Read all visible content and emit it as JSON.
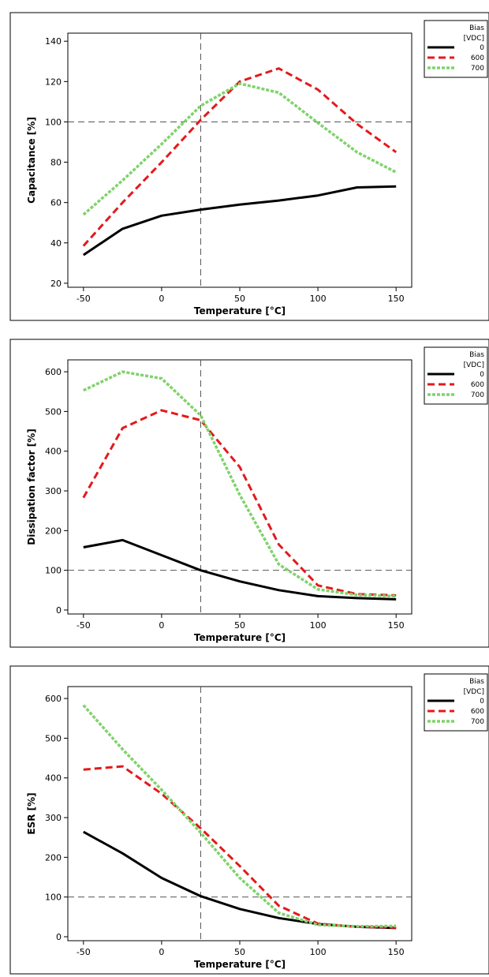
{
  "chart_data": [
    {
      "type": "line",
      "xlabel": "Temperature [°C]",
      "ylabel": "Capacitance [%]",
      "x": [
        -50,
        -25,
        0,
        25,
        50,
        75,
        100,
        125,
        150
      ],
      "xticks": [
        -50,
        0,
        50,
        100,
        150
      ],
      "yticks": [
        20,
        40,
        60,
        80,
        100,
        120,
        140
      ],
      "xlim": [
        -60,
        160
      ],
      "ylim": [
        18,
        144
      ],
      "ref_x": 25,
      "ref_y": 100,
      "legend": {
        "title_line1": "Bias",
        "title_line2": "[VDC]",
        "placement": "right"
      },
      "series": [
        {
          "name": "0",
          "color": "#000000",
          "style": "solid",
          "values": [
            34,
            47,
            53.5,
            56.5,
            59,
            61,
            63.5,
            67.5,
            68
          ]
        },
        {
          "name": "600",
          "color": "#e31a1c",
          "style": "dashed",
          "values": [
            38.5,
            60,
            80,
            101,
            120,
            126.5,
            116,
            99,
            85
          ]
        },
        {
          "name": "700",
          "color": "#7fd36b",
          "style": "dotted",
          "values": [
            54,
            71,
            89,
            108,
            119,
            114.5,
            99.5,
            85,
            75
          ]
        }
      ]
    },
    {
      "type": "line",
      "xlabel": "Temperature [°C]",
      "ylabel": "Dissipation factor [%]",
      "x": [
        -50,
        -25,
        0,
        25,
        50,
        75,
        100,
        125,
        150
      ],
      "xticks": [
        -50,
        0,
        50,
        100,
        150
      ],
      "yticks": [
        0,
        100,
        200,
        300,
        400,
        500,
        600
      ],
      "xlim": [
        -60,
        160
      ],
      "ylim": [
        -10,
        630
      ],
      "ref_x": 25,
      "ref_y": 100,
      "legend": {
        "title_line1": "Bias",
        "title_line2": "[VDC]",
        "placement": "right"
      },
      "series": [
        {
          "name": "0",
          "color": "#000000",
          "style": "solid",
          "values": [
            158,
            176,
            138,
            100,
            72,
            50,
            35,
            30,
            27
          ]
        },
        {
          "name": "600",
          "color": "#e31a1c",
          "style": "dashed",
          "values": [
            283,
            458,
            503,
            478,
            360,
            165,
            62,
            40,
            37
          ]
        },
        {
          "name": "700",
          "color": "#7fd36b",
          "style": "dotted",
          "values": [
            553,
            600,
            583,
            490,
            290,
            115,
            52,
            38,
            35
          ]
        }
      ]
    },
    {
      "type": "line",
      "xlabel": "Temperature [°C]",
      "ylabel": "ESR [%]",
      "x": [
        -50,
        -25,
        0,
        25,
        50,
        75,
        100,
        125,
        150
      ],
      "xticks": [
        -50,
        0,
        50,
        100,
        150
      ],
      "yticks": [
        0,
        100,
        200,
        300,
        400,
        500,
        600
      ],
      "xlim": [
        -60,
        160
      ],
      "ylim": [
        -10,
        630
      ],
      "ref_x": 25,
      "ref_y": 100,
      "legend": {
        "title_line1": "Bias",
        "title_line2": "[VDC]",
        "placement": "right"
      },
      "series": [
        {
          "name": "0",
          "color": "#000000",
          "style": "solid",
          "values": [
            264,
            210,
            148,
            102,
            70,
            47,
            32,
            25,
            22
          ]
        },
        {
          "name": "600",
          "color": "#e31a1c",
          "style": "dashed",
          "values": [
            421,
            429,
            360,
            273,
            178,
            78,
            33,
            25,
            23
          ]
        },
        {
          "name": "700",
          "color": "#7fd36b",
          "style": "dotted",
          "values": [
            583,
            472,
            370,
            262,
            148,
            60,
            30,
            26,
            27
          ]
        }
      ]
    }
  ]
}
